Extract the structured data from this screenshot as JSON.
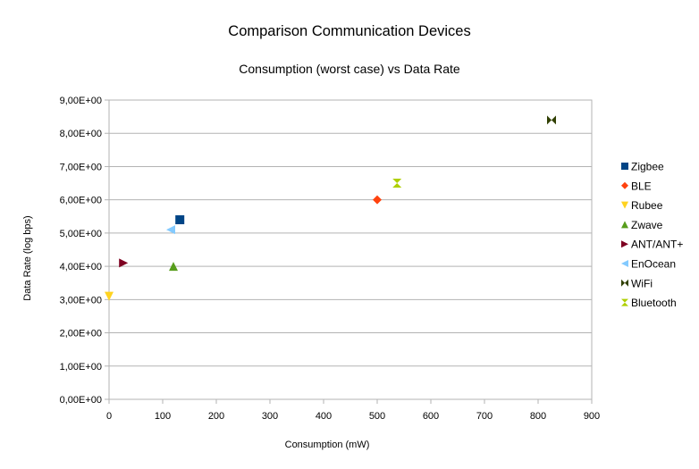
{
  "chart_data": {
    "type": "scatter",
    "title": "Comparison Communication Devices",
    "subtitle": "Consumption (worst case) vs Data Rate",
    "xlabel": "Consumption (mW)",
    "ylabel": "Data Rate (log bps)",
    "xlim": [
      0,
      900
    ],
    "ylim": [
      0,
      9
    ],
    "x_ticks": [
      0,
      100,
      200,
      300,
      400,
      500,
      600,
      700,
      800,
      900
    ],
    "x_tick_labels": [
      "0",
      "100",
      "200",
      "300",
      "400",
      "500",
      "600",
      "700",
      "800",
      "900"
    ],
    "y_ticks": [
      0,
      1,
      2,
      3,
      4,
      5,
      6,
      7,
      8,
      9
    ],
    "y_tick_labels": [
      "0,00E+00",
      "1,00E+00",
      "2,00E+00",
      "3,00E+00",
      "4,00E+00",
      "5,00E+00",
      "6,00E+00",
      "7,00E+00",
      "8,00E+00",
      "9,00E+00"
    ],
    "grid": "horizontal",
    "legend_position": "right",
    "series": [
      {
        "name": "Zigbee",
        "marker": "square",
        "color": "#004586",
        "points": [
          {
            "x": 132,
            "y": 5.4
          }
        ]
      },
      {
        "name": "BLE",
        "marker": "diamond",
        "color": "#ff420e",
        "points": [
          {
            "x": 500,
            "y": 6.0
          }
        ]
      },
      {
        "name": "Rubee",
        "marker": "triangle-down",
        "color": "#ffd320",
        "points": [
          {
            "x": 0,
            "y": 3.1
          }
        ]
      },
      {
        "name": "Zwave",
        "marker": "triangle-up",
        "color": "#579d1c",
        "points": [
          {
            "x": 120,
            "y": 4.0
          }
        ]
      },
      {
        "name": "ANT/ANT+",
        "marker": "triangle-right",
        "color": "#7e0021",
        "points": [
          {
            "x": 27,
            "y": 4.1
          }
        ]
      },
      {
        "name": "EnOcean",
        "marker": "triangle-left",
        "color": "#83caff",
        "points": [
          {
            "x": 115,
            "y": 5.1
          }
        ]
      },
      {
        "name": "WiFi",
        "marker": "bowtie",
        "color": "#314004",
        "points": [
          {
            "x": 825,
            "y": 8.4
          }
        ]
      },
      {
        "name": "Bluetooth",
        "marker": "hourglass",
        "color": "#aecf00",
        "points": [
          {
            "x": 537,
            "y": 6.5
          }
        ]
      }
    ]
  }
}
